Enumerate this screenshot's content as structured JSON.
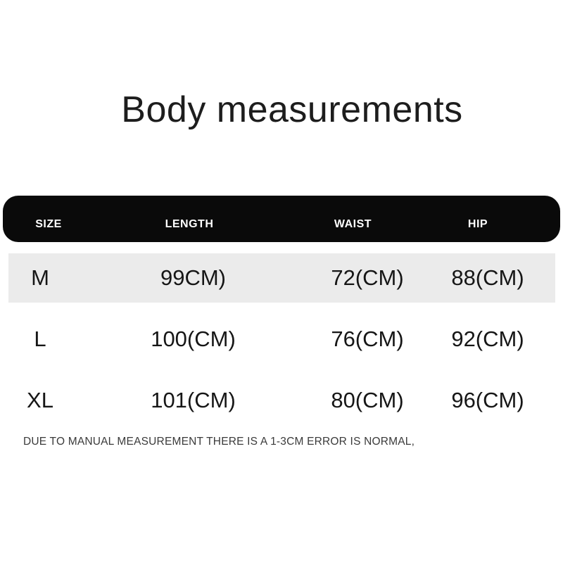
{
  "chart_data": {
    "type": "table",
    "title": "Body measurements",
    "columns": [
      "SIZE",
      "LENGTH",
      "WAIST",
      "HIP"
    ],
    "rows": [
      {
        "cells": [
          "M",
          "99CM)",
          "72(CM)",
          "88(CM)"
        ]
      },
      {
        "cells": [
          "L",
          "100(CM)",
          "76(CM)",
          "92(CM)"
        ]
      },
      {
        "cells": [
          "XL",
          "101(CM)",
          "80(CM)",
          "96(CM)"
        ]
      }
    ],
    "note": "DUE TO MANUAL MEASUREMENT THERE IS A 1-3CM ERROR IS NORMAL,"
  },
  "colors": {
    "background": "#ffffff",
    "header_bg": "#0a0a0a",
    "header_text": "#ffffff",
    "alt_row_bg": "#ebebeb",
    "body_text": "#161616",
    "title_text": "#1d1d1d",
    "note_text": "#3a3a3a"
  }
}
